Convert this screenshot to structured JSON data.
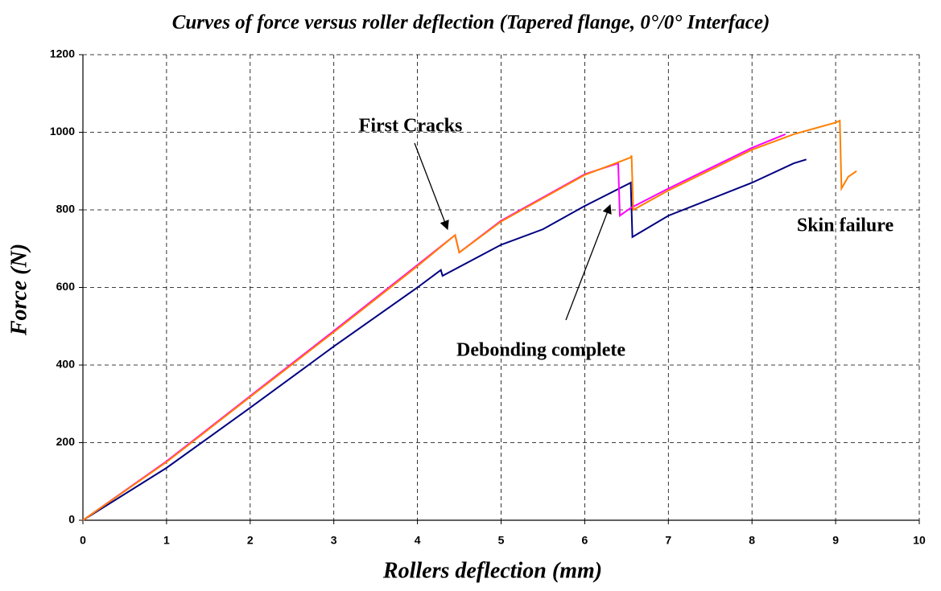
{
  "chart_data": {
    "type": "line",
    "title": "Curves of force versus roller deflection (Tapered flange, 0°/0° Interface)",
    "x_label": "Rollers deflection (mm)",
    "y_label": "Force (N)",
    "annotations": [
      "First Cracks",
      "Debonding complete",
      "Skin failure"
    ],
    "xlim": [
      0,
      10
    ],
    "ylim": [
      0,
      1200
    ],
    "xticks": [
      0,
      1,
      2,
      3,
      4,
      5,
      6,
      7,
      8,
      9,
      10
    ],
    "yticks": [
      0,
      200,
      400,
      600,
      800,
      1000,
      1200
    ],
    "grid": true,
    "series": [
      {
        "color": "#000080",
        "x": [
          0,
          1,
          2,
          3,
          4,
          4.28,
          4.3,
          5,
          5.5,
          6,
          6.55,
          6.57,
          7,
          8,
          8.5,
          8.65
        ],
        "values": [
          0,
          135,
          290,
          448,
          600,
          645,
          630,
          710,
          750,
          810,
          870,
          730,
          785,
          870,
          920,
          930
        ]
      },
      {
        "color": "#ff00ff",
        "x": [
          0,
          1,
          2,
          3,
          4,
          4.45,
          4.5,
          5,
          6,
          6.4,
          6.42,
          6.55,
          7,
          8,
          8.4
        ],
        "values": [
          0,
          152,
          320,
          488,
          658,
          735,
          690,
          772,
          892,
          920,
          785,
          805,
          855,
          960,
          995
        ]
      },
      {
        "color": "#ff7f00",
        "x": [
          0,
          1,
          2,
          3,
          4,
          4.45,
          4.5,
          5,
          6,
          6.55,
          6.56,
          6.58,
          7,
          8,
          8.5,
          9,
          9.05,
          9.07,
          9.15,
          9.25
        ],
        "values": [
          0,
          150,
          318,
          485,
          655,
          735,
          690,
          770,
          890,
          935,
          940,
          800,
          850,
          955,
          995,
          1025,
          1030,
          855,
          885,
          900
        ]
      }
    ]
  }
}
